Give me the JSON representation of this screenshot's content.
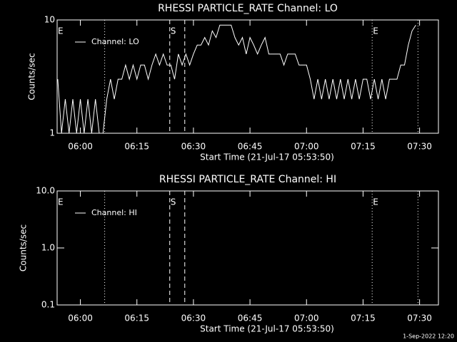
{
  "chart_data": [
    {
      "type": "line",
      "title": "RHESSI PARTICLE_RATE Channel: LO",
      "xlabel": "Start Time (21-Jul-17 05:53:50)",
      "ylabel": "Counts/sec",
      "log_y": true,
      "legend": "upper left",
      "xlim": [
        "05:53:50",
        "07:35:00"
      ],
      "xticks": [
        "06:00",
        "06:15",
        "06:30",
        "06:45",
        "07:00",
        "07:15",
        "07:30"
      ],
      "ylim": [
        1,
        10
      ],
      "yticks": [
        1,
        10
      ],
      "x": [
        "05:54",
        "05:55",
        "05:56",
        "05:57",
        "05:58",
        "05:59",
        "06:00",
        "06:01",
        "06:02",
        "06:03",
        "06:04",
        "06:05",
        "06:06",
        "06:07",
        "06:08",
        "06:09",
        "06:10",
        "06:11",
        "06:12",
        "06:13",
        "06:14",
        "06:15",
        "06:16",
        "06:17",
        "06:18",
        "06:19",
        "06:20",
        "06:21",
        "06:22",
        "06:23",
        "06:24",
        "06:25",
        "06:26",
        "06:27",
        "06:28",
        "06:29",
        "06:30",
        "06:31",
        "06:32",
        "06:33",
        "06:34",
        "06:35",
        "06:36",
        "06:37",
        "06:38",
        "06:39",
        "06:40",
        "06:41",
        "06:42",
        "06:43",
        "06:44",
        "06:45",
        "06:46",
        "06:47",
        "06:48",
        "06:49",
        "06:50",
        "06:51",
        "06:52",
        "06:53",
        "06:54",
        "06:55",
        "06:56",
        "06:57",
        "06:58",
        "06:59",
        "07:00",
        "07:01",
        "07:02",
        "07:03",
        "07:04",
        "07:05",
        "07:06",
        "07:07",
        "07:08",
        "07:09",
        "07:10",
        "07:11",
        "07:12",
        "07:13",
        "07:14",
        "07:15",
        "07:16",
        "07:17",
        "07:18",
        "07:19",
        "07:20",
        "07:21",
        "07:22",
        "07:23",
        "07:24",
        "07:25",
        "07:26",
        "07:27",
        "07:28",
        "07:29"
      ],
      "series": [
        {
          "name": "Channel: LO",
          "color": "#ffffff",
          "values": [
            3,
            1,
            2,
            1,
            2,
            1,
            2,
            1,
            2,
            1,
            2,
            1,
            1,
            2,
            3,
            2,
            3,
            3,
            4,
            3,
            4,
            3,
            4,
            4,
            3,
            4,
            5,
            4,
            5,
            4,
            4,
            3,
            5,
            4,
            5,
            4,
            5,
            6,
            6,
            7,
            6,
            8,
            7,
            9,
            9,
            9,
            9,
            7,
            6,
            7,
            5,
            7,
            6,
            5,
            6,
            7,
            5,
            5,
            5,
            5,
            4,
            5,
            5,
            5,
            4,
            4,
            4,
            3,
            2,
            3,
            2,
            3,
            2,
            3,
            2,
            3,
            2,
            3,
            2,
            3,
            2,
            3,
            3,
            2,
            3,
            2,
            3,
            2,
            3,
            3,
            3,
            4,
            4,
            6,
            8,
            9
          ]
        }
      ],
      "markers": [
        {
          "x": "06:06:27",
          "style": "dotted"
        },
        {
          "x": "06:23:43",
          "style": "dashed"
        },
        {
          "x": "06:27:42",
          "style": "dashed"
        },
        {
          "x": "07:17:25",
          "style": "dotted"
        },
        {
          "x": "07:29:34",
          "style": "dotted"
        }
      ],
      "annotations": [
        {
          "text": "E",
          "x": "05:53:50"
        },
        {
          "text": "S",
          "x": "06:23:43"
        },
        {
          "text": "E",
          "x": "07:17:25"
        }
      ]
    },
    {
      "type": "line",
      "title": "RHESSI PARTICLE_RATE Channel: HI",
      "xlabel": "Start Time (21-Jul-17 05:53:50)",
      "ylabel": "Counts/sec",
      "log_y": true,
      "legend": "upper left",
      "xlim": [
        "05:53:50",
        "07:35:00"
      ],
      "xticks": [
        "06:00",
        "06:15",
        "06:30",
        "06:45",
        "07:00",
        "07:15",
        "07:30"
      ],
      "ylim": [
        0.1,
        10
      ],
      "yticks": [
        0.1,
        {
          "value": 1,
          "label": "1.0"
        },
        {
          "value": 10,
          "label": "10.0"
        }
      ],
      "x": [],
      "series": [
        {
          "name": "Channel: HI",
          "color": "#ffffff",
          "values": []
        }
      ],
      "markers": [
        {
          "x": "06:06:27",
          "style": "dotted"
        },
        {
          "x": "06:23:43",
          "style": "dashed"
        },
        {
          "x": "06:27:42",
          "style": "dashed"
        },
        {
          "x": "07:17:25",
          "style": "dotted"
        },
        {
          "x": "07:29:34",
          "style": "dotted"
        }
      ],
      "annotations": [
        {
          "text": "E",
          "x": "05:53:50"
        },
        {
          "text": "S",
          "x": "06:23:43"
        },
        {
          "text": "E",
          "x": "07:17:25"
        }
      ]
    }
  ],
  "footer": "1-Sep-2022 12:20"
}
